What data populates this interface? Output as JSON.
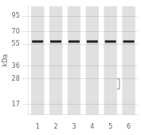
{
  "chart_data": {
    "type": "scatter",
    "ylabel": "kDa",
    "categories": [
      "1",
      "2",
      "3",
      "4",
      "5",
      "6"
    ],
    "values": [
      58,
      58,
      58,
      58,
      58,
      58
    ],
    "color": "#222222",
    "marker": "line",
    "log": "y",
    "ylim": [
      14,
      115
    ],
    "yticks": [
      95,
      70,
      55,
      36,
      28,
      17
    ],
    "grid": true,
    "bracket": {
      "lane": "5",
      "range": [
        23,
        28
      ]
    }
  }
}
